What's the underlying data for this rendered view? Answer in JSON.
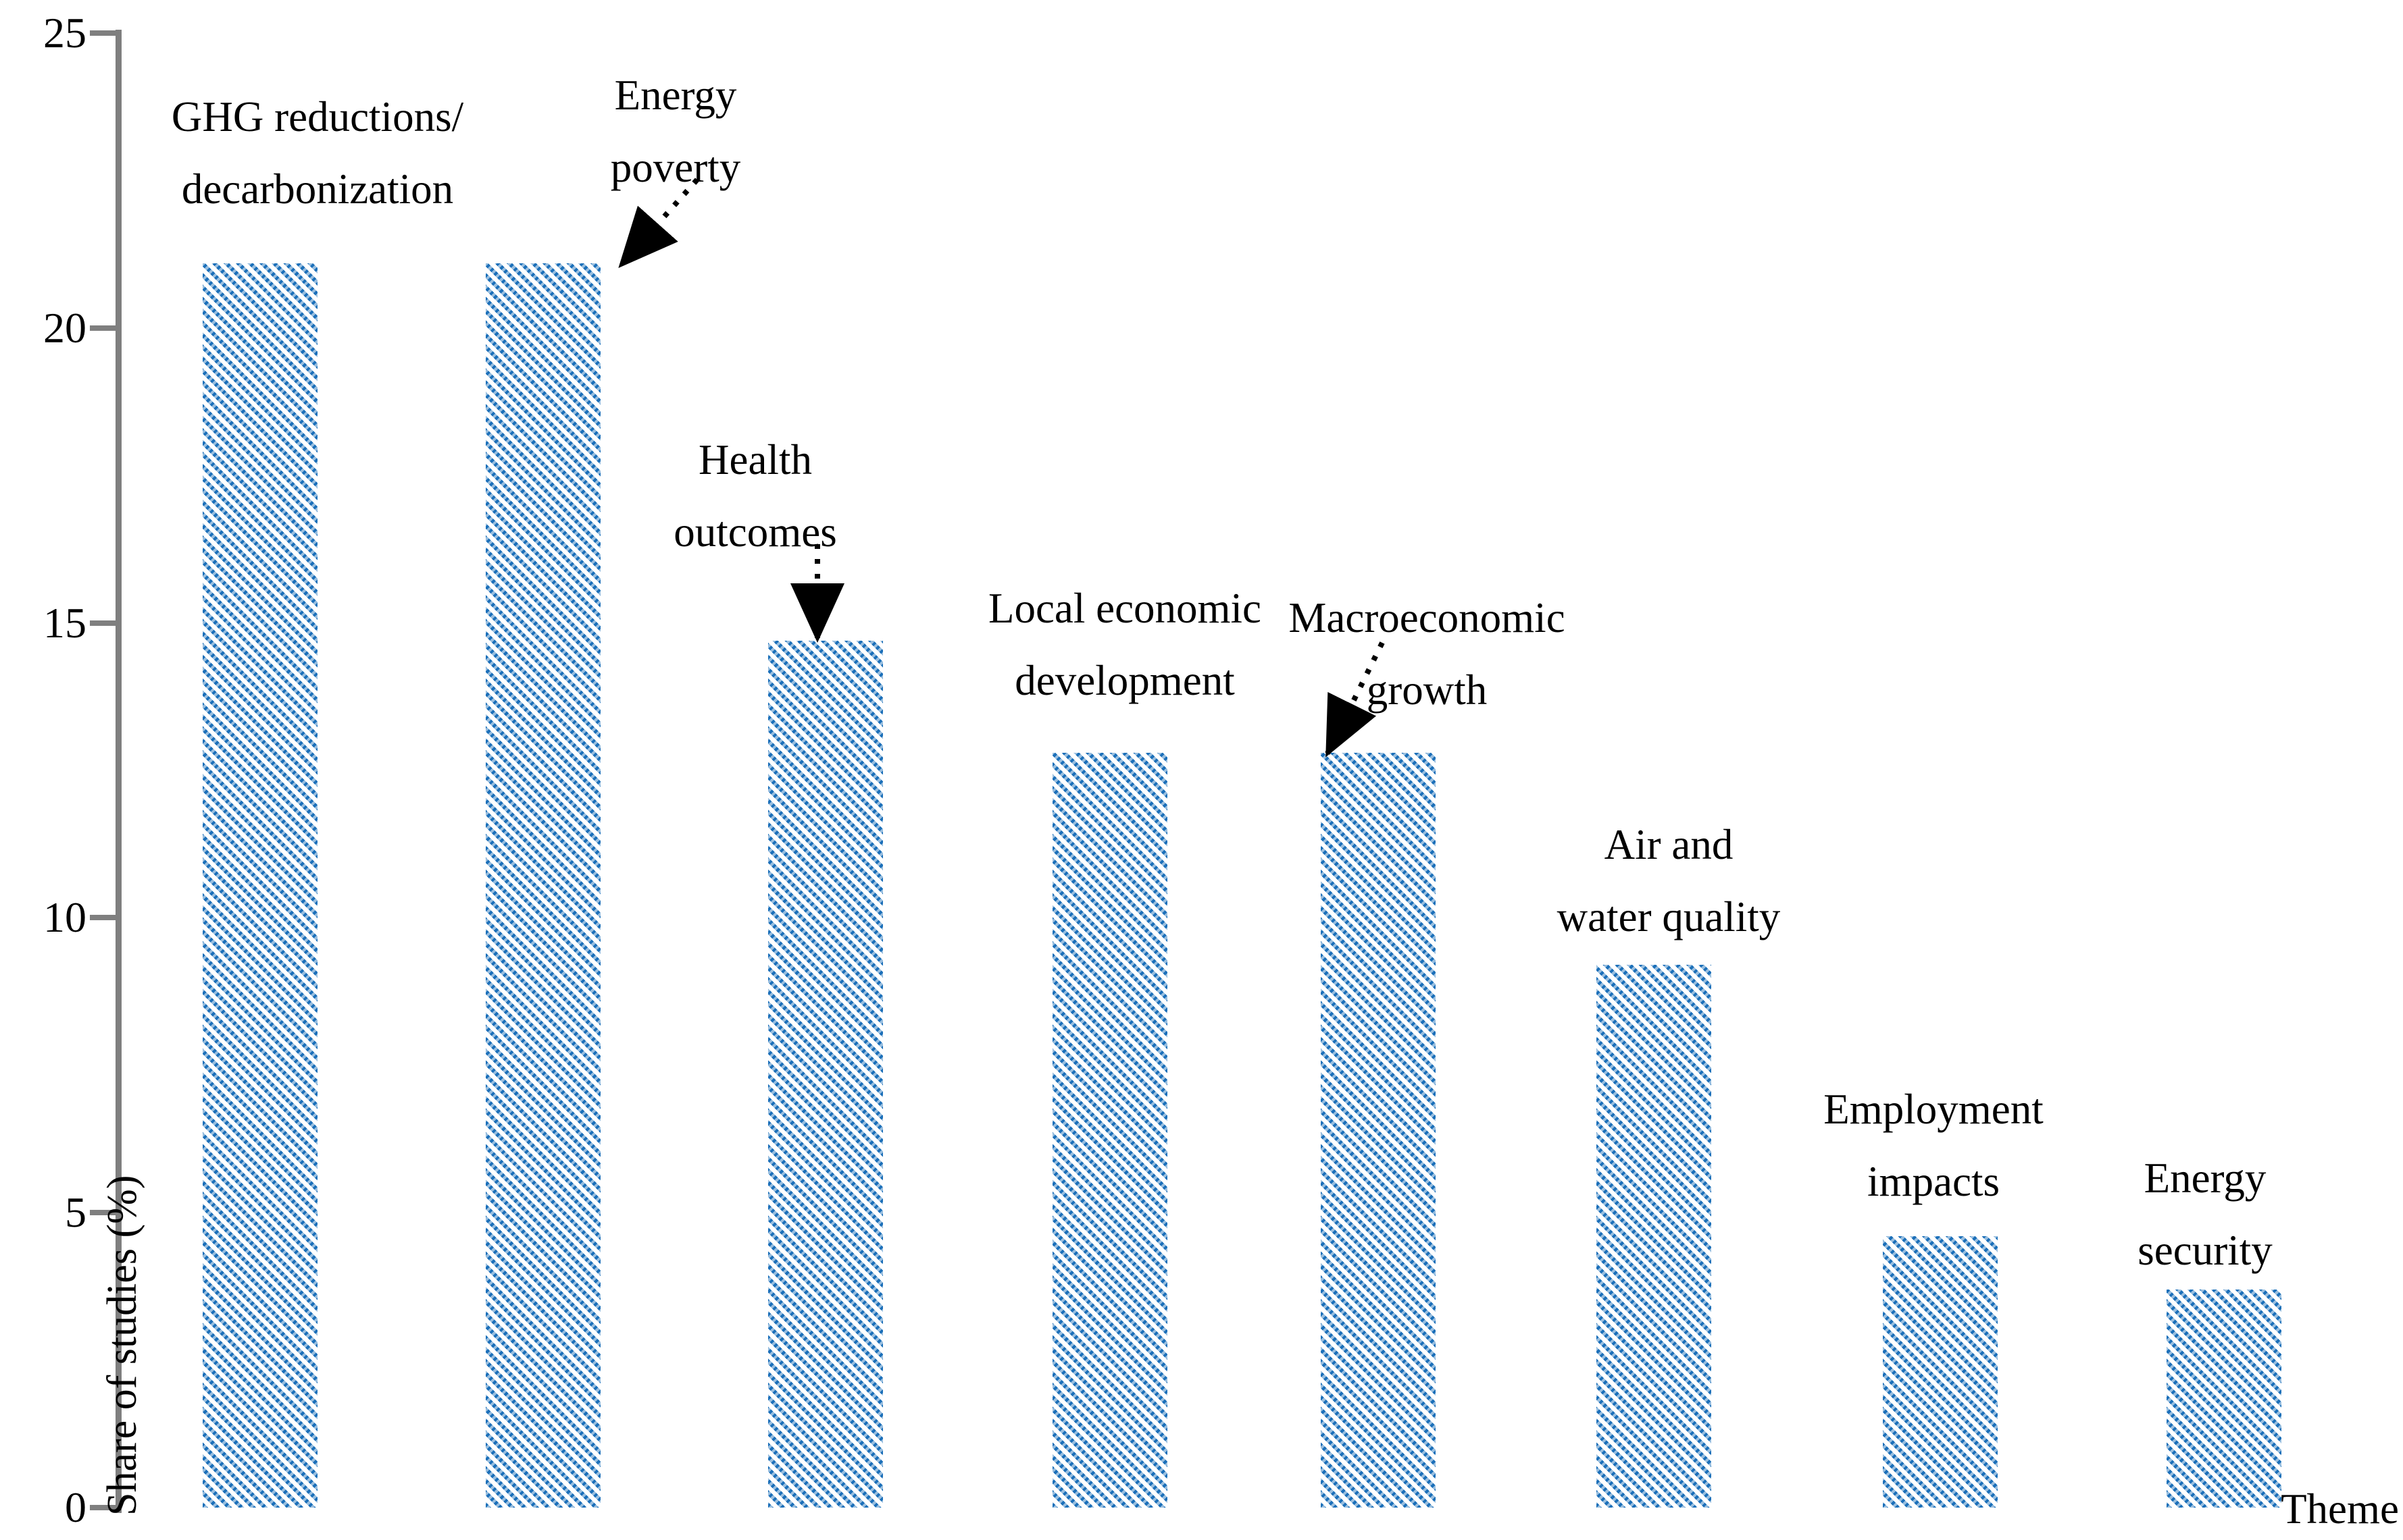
{
  "figure_title": "",
  "chart_data": {
    "type": "bar",
    "title": "",
    "categories": [
      "GHG reductions/decarbonization",
      "Energy poverty",
      "Health outcomes",
      "Local economic development",
      "Macroeconomic growth",
      "Air and water quality",
      "Employment impacts",
      "Energy security"
    ],
    "label_lines": [
      [
        "GHG reductions/",
        "decarbonization"
      ],
      [
        "Energy",
        "poverty"
      ],
      [
        "Health",
        "outcomes"
      ],
      [
        "Local economic",
        "development"
      ],
      [
        "Macroeconomic",
        "growth"
      ],
      [
        "Air and",
        "water quality"
      ],
      [
        "Employment",
        "impacts"
      ],
      [
        "Energy",
        "security"
      ]
    ],
    "values": [
      21.1,
      21.1,
      14.7,
      12.8,
      12.8,
      9.2,
      4.6,
      3.7
    ],
    "arrow_annotated_categories": [
      "Energy poverty",
      "Health outcomes",
      "Macroeconomic growth"
    ],
    "xlabel": "Theme",
    "ylabel": "Share of studies (%)",
    "ylim": [
      0,
      25
    ],
    "yticks": [
      "0",
      "5",
      "10",
      "15",
      "20",
      "25"
    ],
    "grid": false,
    "legend_position": "none",
    "bar_style": {
      "hatch": "diagonal-dashed",
      "color_dark": "#1B6FB9",
      "color_light": "#8FBCE2",
      "background": "#FFFFFF"
    },
    "axis_color": "#7F7F7F",
    "text_color": "#000000"
  }
}
